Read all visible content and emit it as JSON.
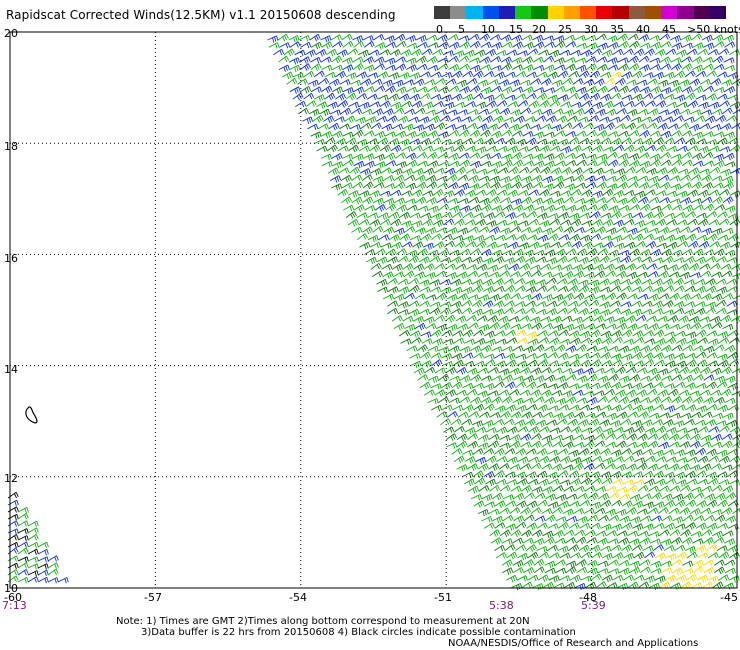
{
  "title": "Rapidscat Corrected Winds(12.5KM) v1.1 20150608 descending",
  "legend": {
    "labels": [
      "0",
      "5",
      "10",
      "15",
      "20",
      "25",
      "30",
      "35",
      "40",
      "45",
      ">50 knots"
    ],
    "colors": [
      "#3c3c3c",
      "#8c8c8c",
      "#00b4f0",
      "#0050f0",
      "#1e1eb4",
      "#14c814",
      "#008c00",
      "#ffd200",
      "#ffa000",
      "#ff5000",
      "#e60000",
      "#b40000",
      "#8c5a3c",
      "#a05000",
      "#d200d2",
      "#8c008c",
      "#500050",
      "#320064"
    ]
  },
  "axes": {
    "x_ticks": [
      "-60",
      "-57",
      "-54",
      "-51",
      "-48",
      "-45"
    ],
    "y_ticks": [
      "20",
      "18",
      "16",
      "14",
      "12",
      "10"
    ]
  },
  "times": [
    "7:13",
    "5:38",
    "5:39"
  ],
  "notes": [
    "Note: 1) Times are GMT 2)Times along bottom correspond to measurement at 20N",
    "3)Data buffer is 22 hrs from 20150608 4) Black circles indicate possible contamination"
  ],
  "credit": "NOAA/NESDIS/Office of Research and Applications",
  "map_data": {
    "lon_range": [
      -60,
      -45
    ],
    "lat_range": [
      10,
      20
    ],
    "gridlines": "dotted",
    "island": "Barbados",
    "wind_colors": {
      "blue": "#1030d0",
      "green": "#10b010",
      "darkgreen": "#0a7a0a",
      "yellow": "#ffd800",
      "black": "#000000"
    }
  }
}
